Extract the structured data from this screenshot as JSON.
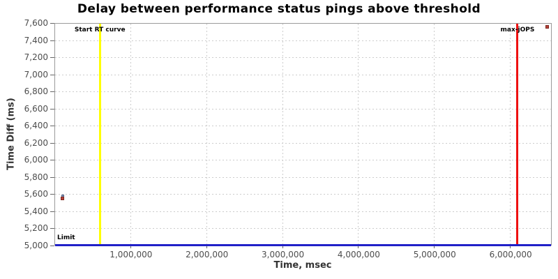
{
  "title": "Delay between performance status pings above threshold",
  "colors": {
    "title": "#000000",
    "axis_title": "#333333",
    "tick_label": "#4d4d4d",
    "grid": "#cccccc",
    "plot_border": "#9a9a9a",
    "start_rt_line": "#ffff00",
    "max_jops_line": "#ee1111",
    "limit_line": "#2020c8",
    "point_red_fill": "#b5423a",
    "point_red_border": "#7e2820",
    "point_blue_fill": "#7a8cb0",
    "point_blue_border": "#5a6a8a",
    "annotation_text": "#000000"
  },
  "chart_data": {
    "type": "scatter",
    "title": "Delay between performance status pings above threshold",
    "xlabel": "Time, msec",
    "ylabel": "Time Diff (ms)",
    "xlim": [
      0,
      6550000
    ],
    "ylim": [
      5000,
      7600
    ],
    "grid": true,
    "legend": "none",
    "xticks": [
      {
        "v": 1000000,
        "label": "1,000,000"
      },
      {
        "v": 2000000,
        "label": "2,000,000"
      },
      {
        "v": 3000000,
        "label": "3,000,000"
      },
      {
        "v": 4000000,
        "label": "4,000,000"
      },
      {
        "v": 5000000,
        "label": "5,000,000"
      },
      {
        "v": 6000000,
        "label": "6,000,000"
      }
    ],
    "yticks": [
      {
        "v": 5000,
        "label": "5,000"
      },
      {
        "v": 5200,
        "label": "5,200"
      },
      {
        "v": 5400,
        "label": "5,400"
      },
      {
        "v": 5600,
        "label": "5,600"
      },
      {
        "v": 5800,
        "label": "5,800"
      },
      {
        "v": 6000,
        "label": "6,000"
      },
      {
        "v": 6200,
        "label": "6,200"
      },
      {
        "v": 6400,
        "label": "6,400"
      },
      {
        "v": 6600,
        "label": "6,600"
      },
      {
        "v": 6800,
        "label": "6,800"
      },
      {
        "v": 7000,
        "label": "7,000"
      },
      {
        "v": 7200,
        "label": "7,200"
      },
      {
        "v": 7400,
        "label": "7,400"
      },
      {
        "v": 7600,
        "label": "7,600"
      }
    ],
    "points": [
      {
        "x": 100000,
        "y": 5590,
        "size": 4,
        "fill": "#7a8cb0",
        "border": "#5a6a8a",
        "name": "data-point-blue"
      },
      {
        "x": 100000,
        "y": 5560,
        "size": 5,
        "fill": "#b5423a",
        "border": "#7e2820",
        "name": "data-point-red"
      },
      {
        "x": 6480000,
        "y": 7560,
        "size": 5,
        "fill": "#b5423a",
        "border": "#7e2820",
        "name": "data-point-red"
      }
    ],
    "vlines": [
      {
        "x": 590000,
        "label": "Start RT curve",
        "color": "#ffff00",
        "name": "start-rt-curve-line"
      },
      {
        "x": 6090000,
        "label": "max-jOPS",
        "color": "#ee1111",
        "name": "max-jops-line"
      }
    ],
    "hlines": [
      {
        "y": 5000,
        "label": "Limit",
        "color": "#2020c8",
        "name": "limit-line"
      }
    ]
  }
}
